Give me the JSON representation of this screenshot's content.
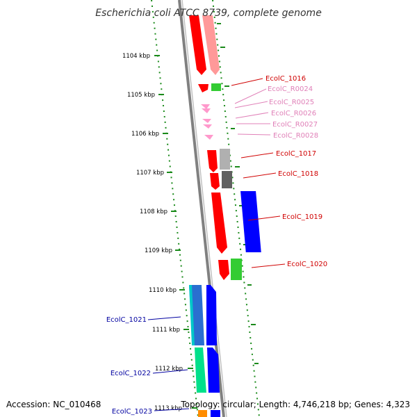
{
  "title": "Escherichia coli ATCC 8739, complete genome",
  "footer": {
    "accession": "Accession: NC_010468",
    "topology": "Topology: circular; Length: 4,746,218 bp; Genes: 4,323"
  },
  "ticks": [
    "1104 kbp",
    "1105 kbp",
    "1106 kbp",
    "1107 kbp",
    "1108 kbp",
    "1109 kbp",
    "1110 kbp",
    "1111 kbp",
    "1112 kbp",
    "1113 kbp"
  ],
  "genes": [
    {
      "label": "EcolC_1016",
      "color": "#d00000"
    },
    {
      "label": "EcolC_R0024",
      "color": "#e080b8"
    },
    {
      "label": "EcolC_R0025",
      "color": "#e080b8"
    },
    {
      "label": "EcolC_R0026",
      "color": "#e080b8"
    },
    {
      "label": "EcolC_R0027",
      "color": "#e080b8"
    },
    {
      "label": "EcolC_R0028",
      "color": "#e080b8"
    },
    {
      "label": "EcolC_1017",
      "color": "#d00000"
    },
    {
      "label": "EcolC_1018",
      "color": "#d00000"
    },
    {
      "label": "EcolC_1019",
      "color": "#d00000"
    },
    {
      "label": "EcolC_1020",
      "color": "#d00000"
    },
    {
      "label": "EcolC_1021",
      "color": "#0000a0"
    },
    {
      "label": "EcolC_1022",
      "color": "#0000a0"
    },
    {
      "label": "EcolC_1023",
      "color": "#0000a0"
    }
  ],
  "colors": {
    "backbone": "#808080",
    "gc_dots": "#1a8a1a",
    "forward_cds": "#ff0000",
    "reverse_cds": "#0000ff",
    "rna": "#ff99cc"
  }
}
